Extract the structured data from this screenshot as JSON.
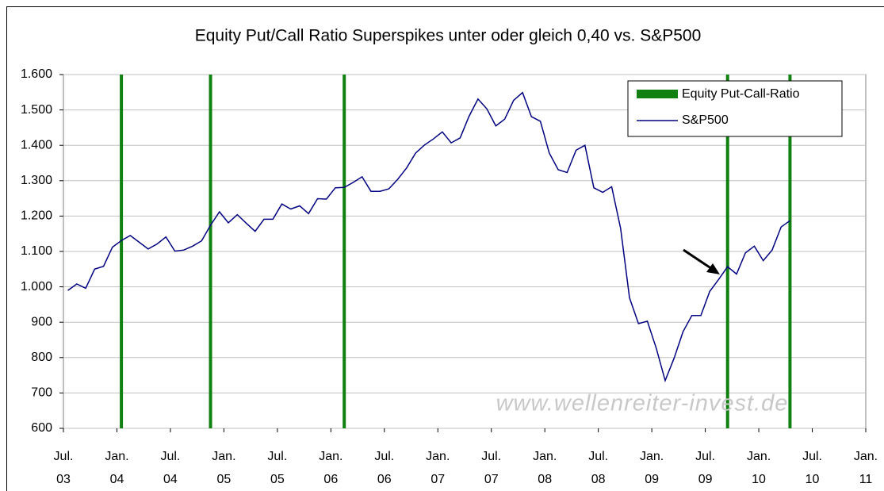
{
  "chart_data": {
    "type": "line",
    "title": "Equity Put/Call Ratio Superspikes unter oder gleich 0,40 vs. S&P500",
    "watermark": "www.wellenreiter-invest.de",
    "legend": "upper right",
    "grid": true,
    "ylim": [
      600,
      1600
    ],
    "yticks": [
      600,
      700,
      800,
      900,
      {
        "value": 1000,
        "label": "1.000"
      },
      {
        "value": 1100,
        "label": "1.100"
      },
      {
        "value": 1200,
        "label": "1.200"
      },
      {
        "value": 1300,
        "label": "1.300"
      },
      {
        "value": 1400,
        "label": "1.400"
      },
      {
        "value": 1500,
        "label": "1.500"
      },
      {
        "value": 1600,
        "label": "1.600"
      }
    ],
    "xlim": [
      "2003-07",
      "2011-01"
    ],
    "xticks": [
      {
        "value": "2003-07",
        "label": [
          "Jul.",
          "03"
        ]
      },
      {
        "value": "2004-01",
        "label": [
          "Jan.",
          "04"
        ]
      },
      {
        "value": "2004-07",
        "label": [
          "Jul.",
          "04"
        ]
      },
      {
        "value": "2005-01",
        "label": [
          "Jan.",
          "05"
        ]
      },
      {
        "value": "2005-07",
        "label": [
          "Jul.",
          "05"
        ]
      },
      {
        "value": "2006-01",
        "label": [
          "Jan.",
          "06"
        ]
      },
      {
        "value": "2006-07",
        "label": [
          "Jul.",
          "06"
        ]
      },
      {
        "value": "2007-01",
        "label": [
          "Jan.",
          "07"
        ]
      },
      {
        "value": "2007-07",
        "label": [
          "Jul.",
          "07"
        ]
      },
      {
        "value": "2008-01",
        "label": [
          "Jan.",
          "08"
        ]
      },
      {
        "value": "2008-07",
        "label": [
          "Jul.",
          "08"
        ]
      },
      {
        "value": "2009-01",
        "label": [
          "Jan.",
          "09"
        ]
      },
      {
        "value": "2009-07",
        "label": [
          "Jul.",
          "09"
        ]
      },
      {
        "value": "2010-01",
        "label": [
          "Jan.",
          "10"
        ]
      },
      {
        "value": "2010-07",
        "label": [
          "Jul.",
          "10"
        ]
      },
      {
        "value": "2011-01",
        "label": [
          "Jan.",
          "11"
        ]
      }
    ],
    "spikes": {
      "name": "Equity Put-Call-Ratio",
      "color": "#108010",
      "x": [
        "2004-01",
        "2004-11",
        "2006-02",
        "2009-09",
        "2010-04"
      ]
    },
    "series": [
      {
        "name": "S&P500",
        "color": "#000080",
        "x": [
          "2003-07",
          "2003-08",
          "2003-09",
          "2003-10",
          "2003-11",
          "2003-12",
          "2004-01",
          "2004-02",
          "2004-03",
          "2004-04",
          "2004-05",
          "2004-06",
          "2004-07",
          "2004-08",
          "2004-09",
          "2004-10",
          "2004-11",
          "2004-12",
          "2005-01",
          "2005-02",
          "2005-03",
          "2005-04",
          "2005-05",
          "2005-06",
          "2005-07",
          "2005-08",
          "2005-09",
          "2005-10",
          "2005-11",
          "2005-12",
          "2006-01",
          "2006-02",
          "2006-03",
          "2006-04",
          "2006-05",
          "2006-06",
          "2006-07",
          "2006-08",
          "2006-09",
          "2006-10",
          "2006-11",
          "2006-12",
          "2007-01",
          "2007-02",
          "2007-03",
          "2007-04",
          "2007-05",
          "2007-06",
          "2007-07",
          "2007-08",
          "2007-09",
          "2007-10",
          "2007-11",
          "2007-12",
          "2008-01",
          "2008-02",
          "2008-03",
          "2008-04",
          "2008-05",
          "2008-06",
          "2008-07",
          "2008-08",
          "2008-09",
          "2008-10",
          "2008-11",
          "2008-12",
          "2009-01",
          "2009-02",
          "2009-03",
          "2009-04",
          "2009-05",
          "2009-06",
          "2009-07",
          "2009-08",
          "2009-09",
          "2009-10",
          "2009-11",
          "2009-12",
          "2010-01",
          "2010-02",
          "2010-03",
          "2010-04"
        ],
        "values": [
          990,
          1008,
          996,
          1050,
          1058,
          1112,
          1131,
          1145,
          1126,
          1107,
          1121,
          1141,
          1101,
          1104,
          1115,
          1130,
          1174,
          1212,
          1181,
          1204,
          1180,
          1157,
          1191,
          1191,
          1234,
          1220,
          1229,
          1207,
          1249,
          1248,
          1280,
          1281,
          1295,
          1311,
          1270,
          1270,
          1277,
          1304,
          1336,
          1378,
          1401,
          1418,
          1438,
          1407,
          1421,
          1482,
          1531,
          1503,
          1455,
          1474,
          1527,
          1549,
          1481,
          1468,
          1378,
          1331,
          1323,
          1386,
          1400,
          1280,
          1267,
          1283,
          1165,
          969,
          896,
          903,
          826,
          735,
          798,
          873,
          919,
          919,
          987,
          1021,
          1057,
          1036,
          1096,
          1115,
          1074,
          1104,
          1169,
          1187
        ]
      }
    ]
  }
}
